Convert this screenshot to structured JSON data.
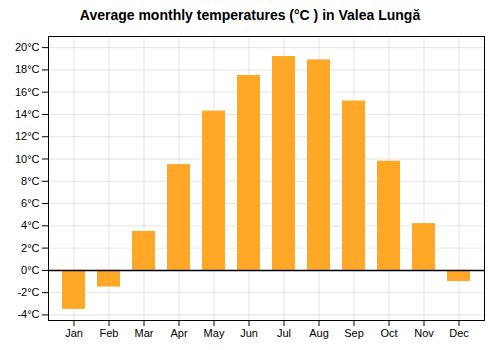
{
  "chart_data": {
    "type": "bar",
    "title": "Average monthly temperatures (°C ) in Valea Lungă",
    "categories": [
      "Jan",
      "Feb",
      "Mar",
      "Apr",
      "May",
      "Jun",
      "Jul",
      "Aug",
      "Sep",
      "Oct",
      "Nov",
      "Dec"
    ],
    "values": [
      -3.5,
      -1.5,
      3.5,
      9.5,
      14.3,
      17.5,
      19.2,
      18.9,
      15.2,
      9.8,
      4.2,
      -1.0
    ],
    "color": "#FFA726",
    "ylim": [
      -4.5,
      21
    ],
    "yticks": [
      {
        "value": -4,
        "label": "-4°C"
      },
      {
        "value": -2,
        "label": "-2°C"
      },
      {
        "value": 0,
        "label": "0°C"
      },
      {
        "value": 2,
        "label": "2°C"
      },
      {
        "value": 4,
        "label": "4°C"
      },
      {
        "value": 6,
        "label": "6°C"
      },
      {
        "value": 8,
        "label": "8°C"
      },
      {
        "value": 10,
        "label": "10°C"
      },
      {
        "value": 12,
        "label": "12°C"
      },
      {
        "value": 14,
        "label": "14°C"
      },
      {
        "value": 16,
        "label": "16°C"
      },
      {
        "value": 18,
        "label": "18°C"
      },
      {
        "value": 20,
        "label": "20°C"
      }
    ],
    "grid": true
  }
}
